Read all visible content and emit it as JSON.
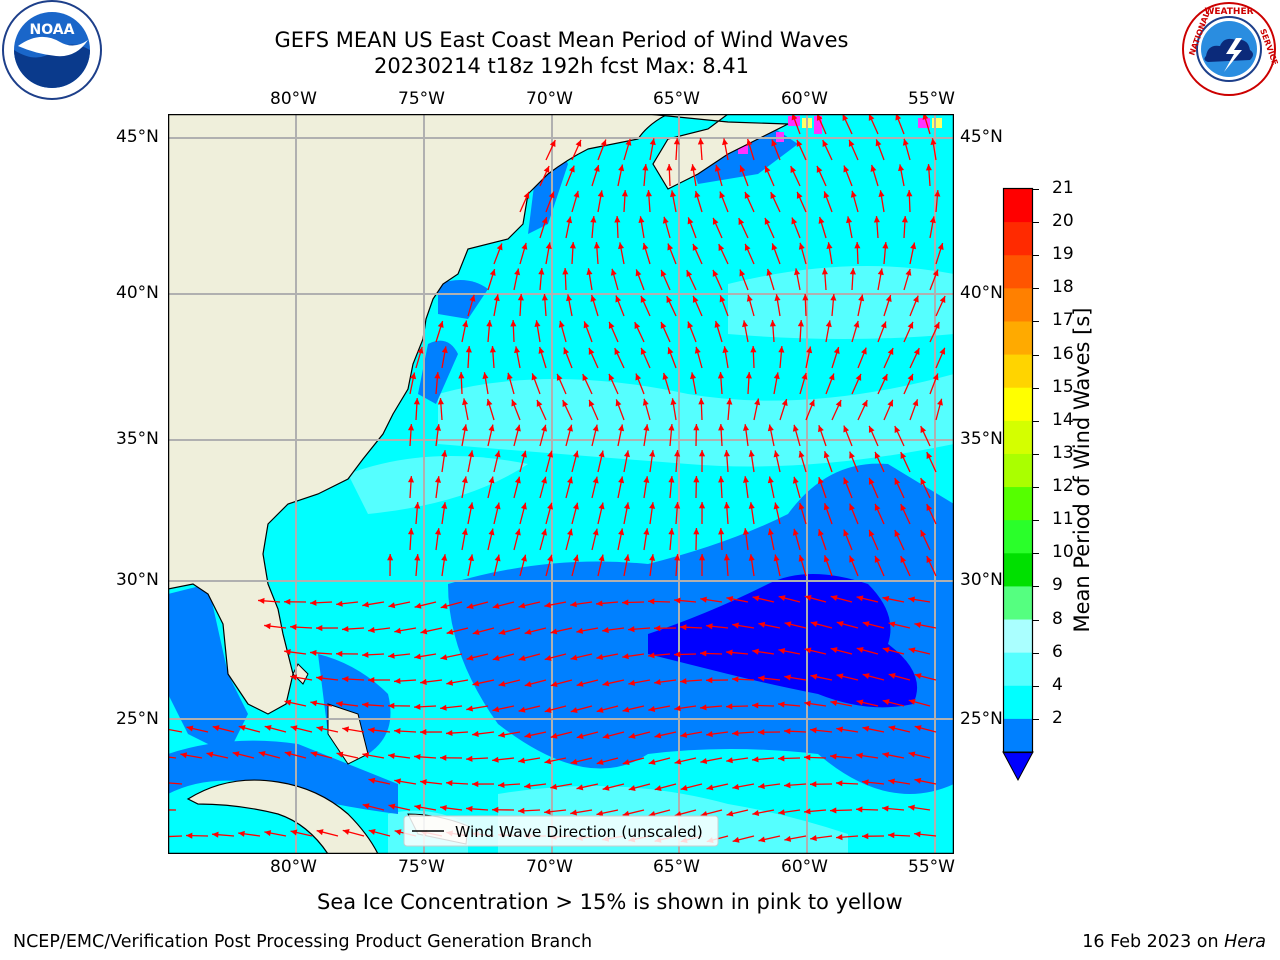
{
  "header": {
    "title_line1": "GEFS MEAN US East Coast Mean Period of Wind Waves",
    "title_line2": "20230214 t18z 192h fcst   Max: 8.41"
  },
  "logos": {
    "left": {
      "text": "NOAA",
      "ring_text": "NATIONAL OCEANIC AND ATMOSPHERIC ADMINISTRATION · U.S. DEPARTMENT OF COMMERCE",
      "icon": "noaa-logo"
    },
    "right": {
      "ring_text": "NATIONAL WEATHER SERVICE",
      "icon": "nws-logo"
    }
  },
  "map": {
    "lon_labels": [
      "80°W",
      "75°W",
      "70°W",
      "65°W",
      "60°W",
      "55°W"
    ],
    "lat_labels": [
      "45°N",
      "40°N",
      "35°N",
      "30°N",
      "25°N"
    ],
    "legend_label": "Wind Wave Direction (unscaled)",
    "land_color": "#efefdb",
    "arrow_color": "#ff0000"
  },
  "colorbar": {
    "label": "Mean Period of Wind Waves [s]",
    "ticks": [
      "21",
      "20",
      "19",
      "18",
      "17",
      "16",
      "15",
      "14",
      "13",
      "12",
      "11",
      "10",
      "9",
      "8",
      "6",
      "4",
      "2"
    ],
    "colors": [
      "#ff0000",
      "#ff2a00",
      "#ff5500",
      "#ff8000",
      "#ffaa00",
      "#ffd400",
      "#ffff00",
      "#d4ff00",
      "#aaff00",
      "#55ff00",
      "#2aff2a",
      "#00e000",
      "#55ff80",
      "#aaffff",
      "#55ffff",
      "#00ffff",
      "#0080ff"
    ],
    "under_color": "#0000ff"
  },
  "notes": {
    "ice_note": "Sea Ice Concentration > 15% is shown in pink to yellow"
  },
  "footer": {
    "left": "NCEP/EMC/Verification Post Processing Product Generation Branch",
    "right_prefix": "16 Feb 2023 on ",
    "right_machine": "Hera"
  }
}
